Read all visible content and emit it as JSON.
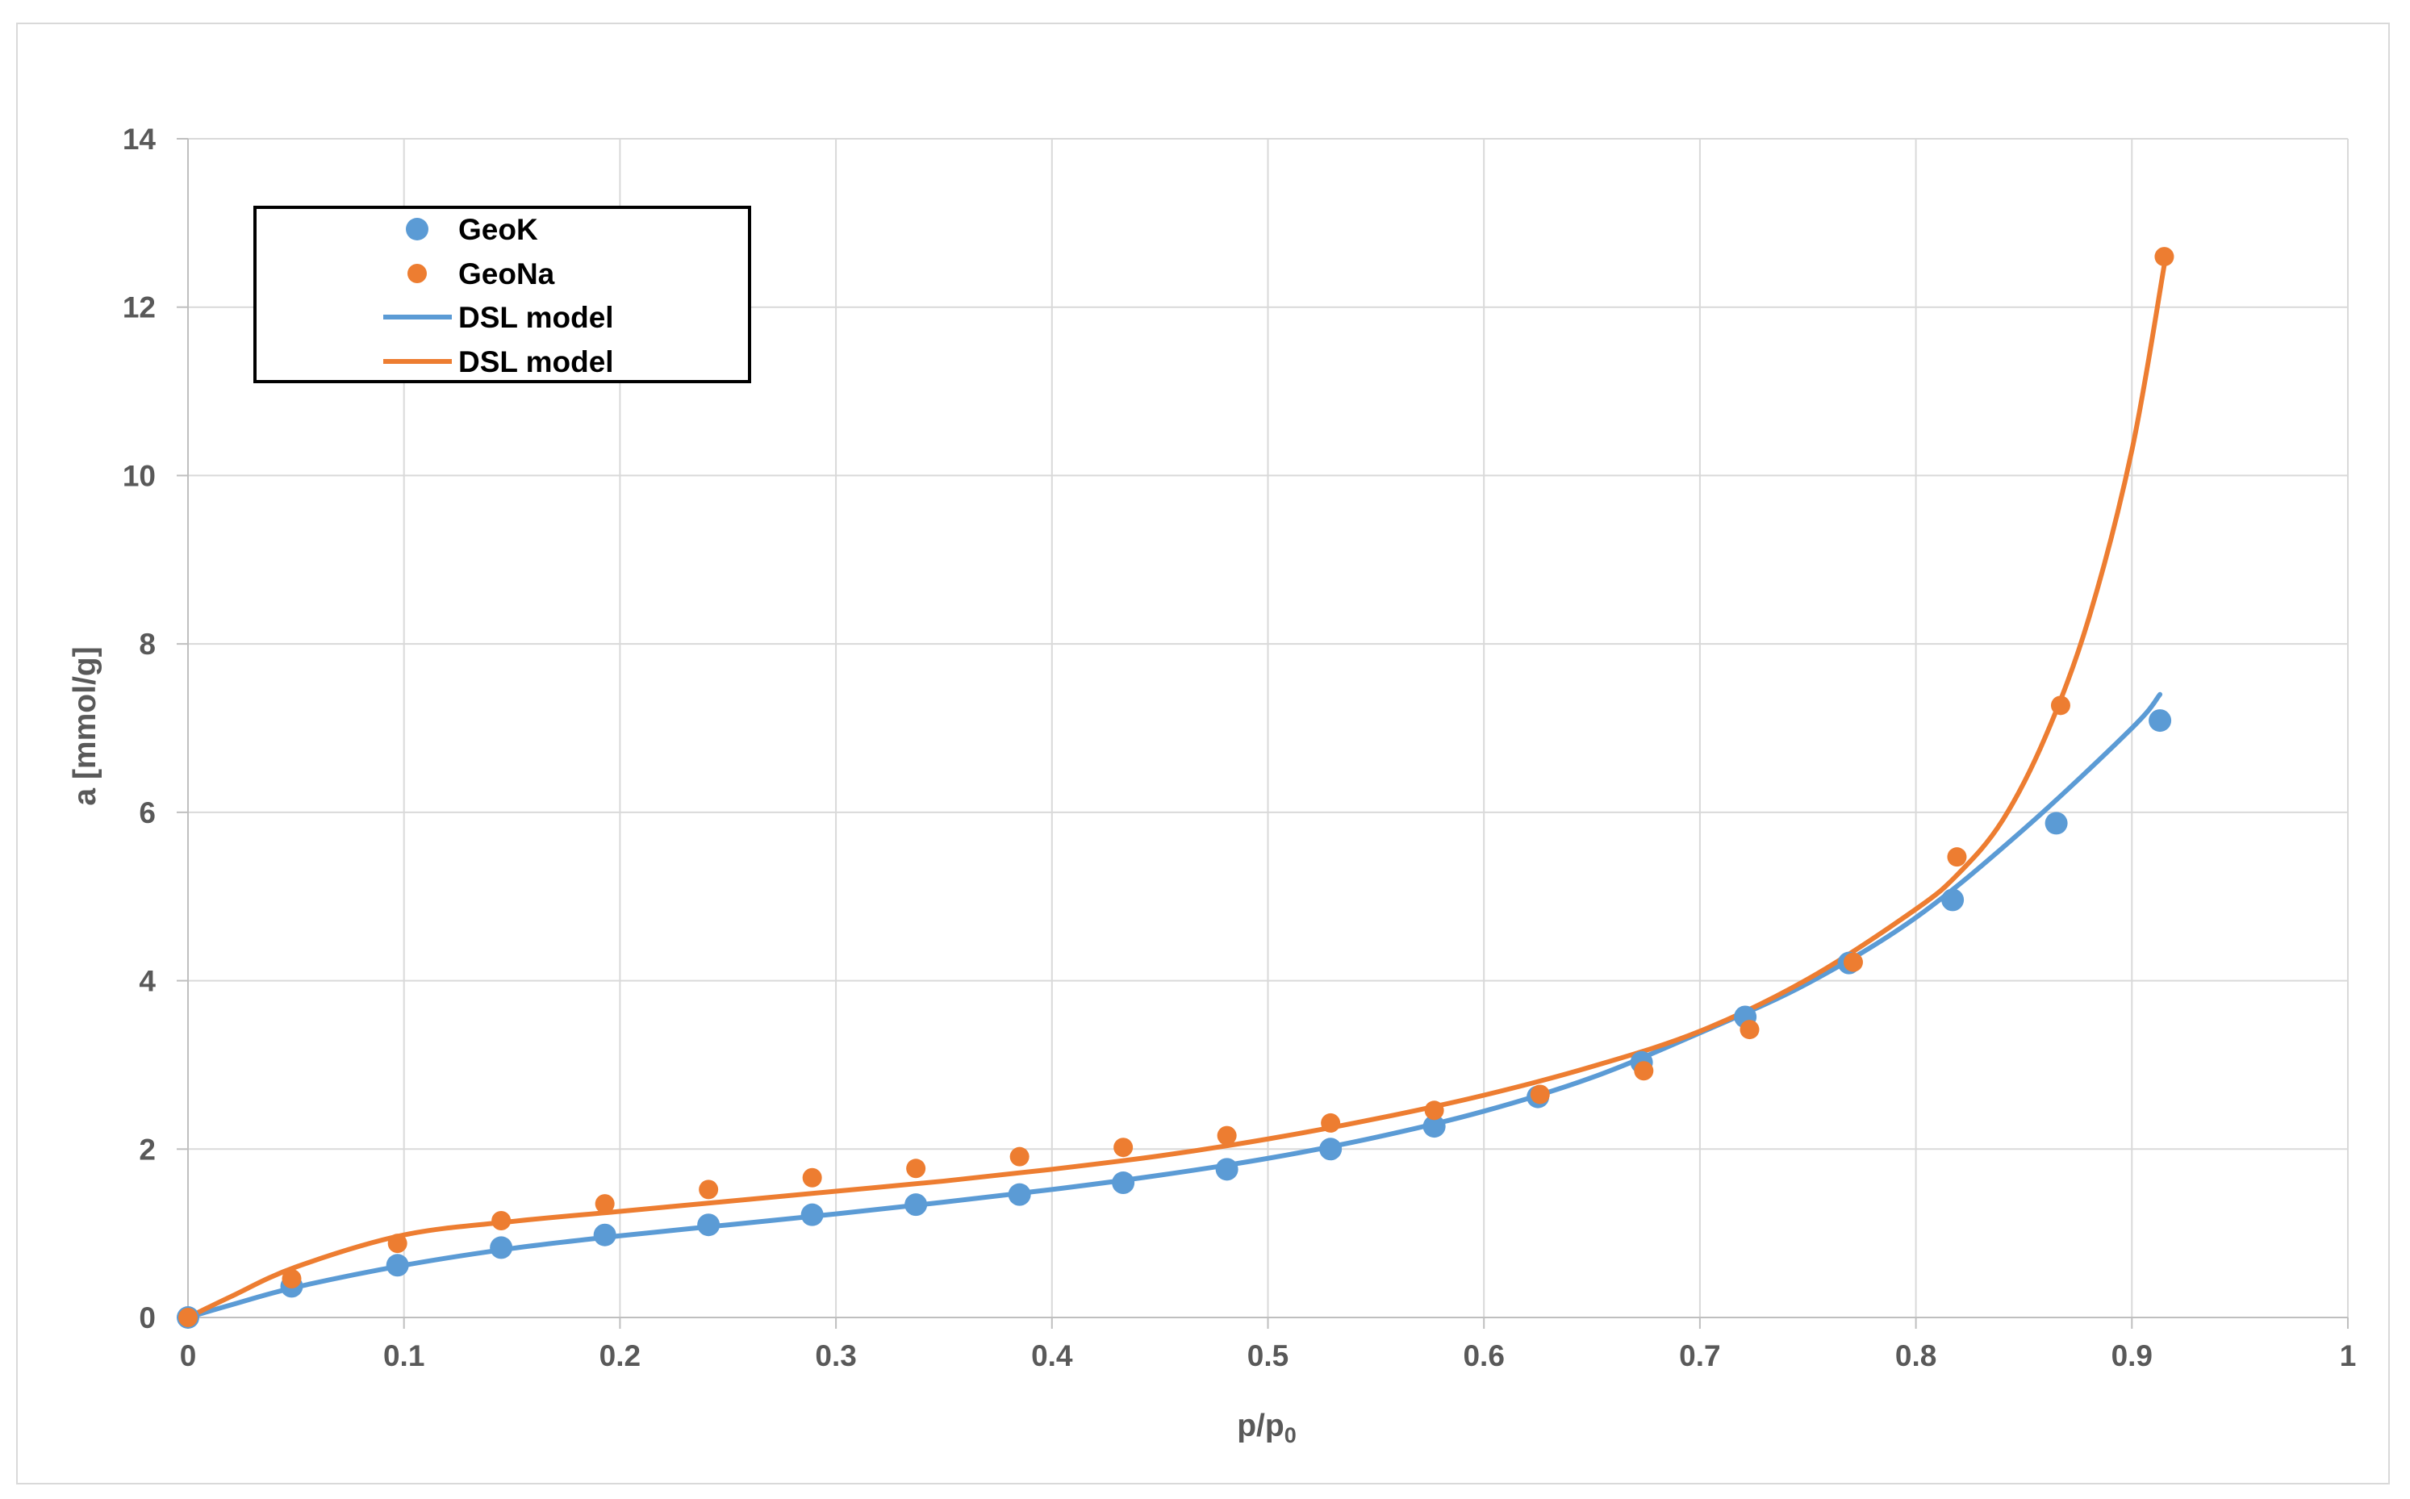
{
  "chart_data": {
    "type": "scatter",
    "title": "",
    "xlabel": "p/p",
    "xlabel_subscript": "0",
    "ylabel": "a [mmol/g]",
    "xlim": [
      0,
      1
    ],
    "ylim": [
      0,
      14
    ],
    "x_ticks": [
      "0",
      "0.1",
      "0.2",
      "0.3",
      "0.4",
      "0.5",
      "0.6",
      "0.7",
      "0.8",
      "0.9",
      "1"
    ],
    "y_ticks": [
      "0",
      "2",
      "4",
      "6",
      "8",
      "10",
      "12",
      "14"
    ],
    "grid": true,
    "legend_position": "top-left",
    "series": [
      {
        "name": "GeoK",
        "kind": "markers",
        "color": "#5b9bd5",
        "x": [
          0,
          0.048,
          0.097,
          0.145,
          0.193,
          0.241,
          0.289,
          0.337,
          0.385,
          0.433,
          0.481,
          0.529,
          0.577,
          0.625,
          0.673,
          0.721,
          0.769,
          0.817,
          0.865,
          0.913
        ],
        "y": [
          0,
          0.37,
          0.62,
          0.83,
          0.98,
          1.1,
          1.22,
          1.34,
          1.46,
          1.6,
          1.76,
          2.0,
          2.27,
          2.62,
          3.03,
          3.57,
          4.21,
          4.96,
          5.87,
          7.09
        ]
      },
      {
        "name": "GeoNa",
        "kind": "markers",
        "color": "#ed7d31",
        "x": [
          0,
          0.048,
          0.097,
          0.145,
          0.193,
          0.241,
          0.289,
          0.337,
          0.385,
          0.433,
          0.481,
          0.529,
          0.577,
          0.626,
          0.674,
          0.723,
          0.771,
          0.819,
          0.867,
          0.915
        ],
        "y": [
          0,
          0.46,
          0.88,
          1.15,
          1.35,
          1.52,
          1.66,
          1.77,
          1.91,
          2.02,
          2.16,
          2.31,
          2.46,
          2.65,
          2.93,
          3.42,
          4.22,
          5.47,
          7.27,
          12.6
        ]
      },
      {
        "name": "DSL model",
        "kind": "line",
        "color": "#5b9bd5",
        "x": [
          0,
          0.02,
          0.05,
          0.1,
          0.15,
          0.2,
          0.25,
          0.3,
          0.35,
          0.4,
          0.45,
          0.5,
          0.55,
          0.6,
          0.65,
          0.7,
          0.75,
          0.8,
          0.85,
          0.9,
          0.913
        ],
        "y": [
          0,
          0.15,
          0.36,
          0.62,
          0.82,
          0.97,
          1.1,
          1.23,
          1.37,
          1.52,
          1.69,
          1.89,
          2.14,
          2.45,
          2.85,
          3.38,
          3.97,
          4.75,
          5.8,
          7.0,
          7.4
        ]
      },
      {
        "name": "DSL model",
        "kind": "line",
        "color": "#ed7d31",
        "x": [
          0,
          0.02,
          0.05,
          0.1,
          0.15,
          0.2,
          0.25,
          0.3,
          0.35,
          0.4,
          0.45,
          0.5,
          0.55,
          0.6,
          0.65,
          0.7,
          0.75,
          0.8,
          0.82,
          0.84,
          0.86,
          0.88,
          0.9,
          0.915
        ],
        "y": [
          0,
          0.25,
          0.6,
          0.98,
          1.14,
          1.26,
          1.38,
          1.5,
          1.62,
          1.76,
          1.92,
          2.12,
          2.36,
          2.64,
          2.98,
          3.4,
          4.02,
          4.85,
          5.28,
          5.9,
          6.9,
          8.3,
          10.3,
          12.5
        ]
      }
    ]
  }
}
